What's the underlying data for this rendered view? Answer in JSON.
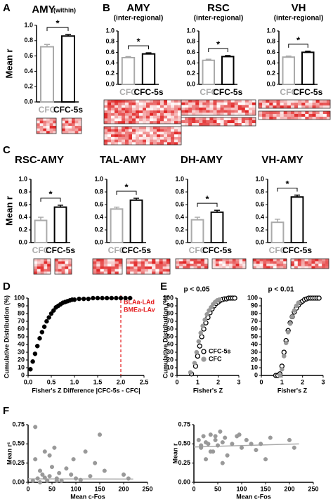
{
  "chart_data": [
    {
      "type": "bar",
      "panel": "A",
      "title": "AMY",
      "subtitle": "(within)",
      "ylabel": "Mean r",
      "categories": [
        "CFC",
        "CFC-5s"
      ],
      "values": [
        0.72,
        0.86
      ],
      "errors": [
        0.03,
        0.02
      ],
      "colors": [
        "#aaaaaa",
        "#000000"
      ],
      "ylim": [
        0,
        1
      ],
      "yticks": [
        {
          "value": 0,
          "label": "0.0"
        },
        0.2,
        0.4,
        0.6,
        0.8,
        {
          "value": 1,
          "label": "1.0"
        }
      ],
      "annotation": "*"
    },
    {
      "type": "bar",
      "panel": "B",
      "title": "AMY",
      "subtitle": "(inter-regional)",
      "categories": [
        "CFC",
        "CFC-5s"
      ],
      "values": [
        0.5,
        0.57
      ],
      "errors": [
        0.02,
        0.02
      ],
      "colors": [
        "#aaaaaa",
        "#000000"
      ],
      "ylim": [
        0,
        1
      ],
      "yticks": [
        {
          "value": 0,
          "label": "0.0"
        },
        0.2,
        0.4,
        0.6,
        0.8,
        {
          "value": 1,
          "label": "1.0"
        }
      ],
      "annotation": "*"
    },
    {
      "type": "bar",
      "title": "RSC",
      "subtitle": "(inter-regional)",
      "categories": [
        "CFC",
        "CFC-5s"
      ],
      "values": [
        0.45,
        0.52
      ],
      "errors": [
        0.02,
        0.02
      ],
      "colors": [
        "#aaaaaa",
        "#000000"
      ],
      "ylim": [
        0,
        1
      ],
      "yticks": [
        {
          "value": 0,
          "label": "0.0"
        },
        0.2,
        0.4,
        0.6,
        0.8,
        {
          "value": 1,
          "label": "1.0"
        }
      ],
      "annotation": "*"
    },
    {
      "type": "bar",
      "title": "VH",
      "subtitle": "(inter-regional)",
      "categories": [
        "CFC",
        "CFC-5s"
      ],
      "values": [
        0.51,
        0.6
      ],
      "errors": [
        0.02,
        0.02
      ],
      "colors": [
        "#aaaaaa",
        "#000000"
      ],
      "ylim": [
        0,
        1
      ],
      "yticks": [
        {
          "value": 0,
          "label": "0.0"
        },
        0.2,
        0.4,
        0.6,
        0.8,
        {
          "value": 1,
          "label": "1.0"
        }
      ],
      "annotation": "*"
    },
    {
      "type": "bar",
      "panel": "C",
      "title": "RSC-AMY",
      "ylabel": "Mean r",
      "categories": [
        "CFC",
        "CFC-5s"
      ],
      "values": [
        0.35,
        0.56
      ],
      "errors": [
        0.05,
        0.03
      ],
      "colors": [
        "#aaaaaa",
        "#000000"
      ],
      "ylim": [
        0,
        1
      ],
      "yticks": [
        {
          "value": 0,
          "label": "0.0"
        },
        0.2,
        0.4,
        0.6,
        0.8,
        {
          "value": 1,
          "label": "1.0"
        }
      ],
      "annotation": "*"
    },
    {
      "type": "bar",
      "title": "TAL-AMY",
      "categories": [
        "CFC",
        "CFC-5s"
      ],
      "values": [
        0.53,
        0.67
      ],
      "errors": [
        0.03,
        0.03
      ],
      "colors": [
        "#aaaaaa",
        "#000000"
      ],
      "ylim": [
        0,
        1
      ],
      "yticks": [
        {
          "value": 0,
          "label": "0.0"
        },
        0.2,
        0.4,
        0.6,
        0.8,
        {
          "value": 1,
          "label": "1.0"
        }
      ],
      "annotation": "*"
    },
    {
      "type": "bar",
      "title": "DH-AMY",
      "categories": [
        "CFC",
        "CFC-5s"
      ],
      "values": [
        0.36,
        0.48
      ],
      "errors": [
        0.04,
        0.03
      ],
      "colors": [
        "#aaaaaa",
        "#000000"
      ],
      "ylim": [
        0,
        1
      ],
      "yticks": [
        {
          "value": 0,
          "label": "0.0"
        },
        0.2,
        0.4,
        0.6,
        0.8,
        {
          "value": 1,
          "label": "1.0"
        }
      ],
      "annotation": "*"
    },
    {
      "type": "bar",
      "title": "VH-AMY",
      "categories": [
        "CFC",
        "CFC-5s"
      ],
      "values": [
        0.32,
        0.72
      ],
      "errors": [
        0.05,
        0.03
      ],
      "colors": [
        "#aaaaaa",
        "#000000"
      ],
      "ylim": [
        0,
        1
      ],
      "yticks": [
        {
          "value": 0,
          "label": "0.0"
        },
        0.2,
        0.4,
        0.6,
        0.8,
        {
          "value": 1,
          "label": "1.0"
        }
      ],
      "annotation": "*"
    },
    {
      "type": "scatter",
      "panel": "D",
      "xlabel": "Fisher's Z Difference |CFC-5s - CFC|",
      "ylabel": "Cumulative Distribution (%)",
      "series": [
        {
          "color": "#000000",
          "marker": "filled",
          "x": [
            0.05,
            0.1,
            0.15,
            0.2,
            0.25,
            0.3,
            0.35,
            0.4,
            0.45,
            0.5,
            0.55,
            0.6,
            0.65,
            0.7,
            0.75,
            0.8,
            0.85,
            0.9,
            0.95,
            1.0,
            1.1,
            1.2,
            1.3,
            1.4,
            1.5,
            1.6,
            1.7,
            1.8,
            1.9,
            2.0,
            2.1,
            2.2
          ],
          "values": [
            8,
            18,
            28,
            38,
            48,
            56,
            63,
            70,
            75,
            80,
            84,
            88,
            90,
            92,
            94,
            95,
            96,
            97,
            98,
            98,
            99,
            99,
            99,
            100,
            100,
            100,
            100,
            100,
            100,
            100,
            100,
            100
          ]
        }
      ],
      "threshold": 2,
      "threshold_color": "#e41a1c",
      "annotations": [
        "BLAa-LAd",
        "BMEa-LAv"
      ],
      "xlim": [
        0,
        2.5
      ],
      "xticks": [
        {
          "value": 0,
          "label": "0.0"
        },
        0.5,
        {
          "value": 1,
          "label": "1.0"
        },
        1.5,
        {
          "value": 2,
          "label": "2.0"
        },
        2.5
      ],
      "ylim": [
        0,
        100
      ],
      "yticks": [
        0,
        10,
        20,
        30,
        40,
        50,
        60,
        70,
        80,
        90,
        100
      ]
    },
    {
      "type": "scatter",
      "panel": "E",
      "title": "p < 0.05",
      "xlabel": "Fisher's Z",
      "ylabel": "Cumulative Distribution (%)",
      "legend": "lower-right",
      "series": [
        {
          "name": "CFC-5s",
          "color": "#000000",
          "marker": "open",
          "x": [
            0.7,
            0.9,
            1.0,
            1.1,
            1.2,
            1.3,
            1.4,
            1.5,
            1.6,
            1.7,
            1.8,
            1.9,
            2.0,
            2.1,
            2.2,
            2.3,
            2.4,
            2.5,
            2.6,
            2.7,
            2.8
          ],
          "values": [
            2,
            12,
            25,
            38,
            50,
            60,
            68,
            75,
            81,
            86,
            90,
            93,
            95,
            97,
            98,
            99,
            99,
            100,
            100,
            100,
            100
          ]
        },
        {
          "name": "CFC",
          "color": "#999999",
          "marker": "filled",
          "x": [
            0.65,
            0.85,
            0.95,
            1.05,
            1.15,
            1.25,
            1.35,
            1.45,
            1.55,
            1.65,
            1.75,
            1.85,
            1.95,
            2.05
          ],
          "values": [
            4,
            16,
            30,
            44,
            55,
            64,
            72,
            79,
            84,
            88,
            92,
            95,
            97,
            98
          ]
        }
      ],
      "xlim": [
        0,
        3
      ],
      "xticks": [
        0,
        1,
        2,
        3
      ],
      "ylim": [
        0,
        100
      ],
      "yticks": [
        0,
        10,
        20,
        30,
        40,
        50,
        60,
        70,
        80,
        90,
        100
      ]
    },
    {
      "type": "scatter",
      "title": "p < 0.01",
      "xlabel": "Fisher's Z",
      "series": [
        {
          "color": "#000000",
          "marker": "open",
          "x": [
            0.7,
            0.8,
            0.9,
            1.0,
            1.1,
            1.2,
            1.3,
            1.4,
            1.5,
            1.6,
            1.7,
            1.8,
            1.9,
            2.0,
            2.1,
            2.2,
            2.3,
            2.4,
            2.5,
            2.6,
            2.7,
            2.8
          ],
          "values": [
            0,
            0,
            2,
            12,
            30,
            45,
            58,
            68,
            76,
            82,
            87,
            91,
            94,
            96,
            98,
            99,
            100,
            100,
            100,
            100,
            100,
            100
          ]
        },
        {
          "color": "#999999",
          "marker": "filled",
          "x": [
            0.9,
            1.0,
            1.1,
            1.2,
            1.3,
            1.4,
            1.5,
            1.6,
            1.7,
            1.8
          ],
          "values": [
            0,
            8,
            25,
            42,
            56,
            67,
            76,
            84,
            90,
            94
          ]
        }
      ],
      "xlim": [
        0,
        3
      ],
      "xticks": [
        0,
        1,
        2,
        3
      ],
      "ylim": [
        0,
        100
      ],
      "yticks": [
        0,
        10,
        20,
        30,
        40,
        50,
        60,
        70,
        80,
        90,
        100
      ]
    },
    {
      "type": "scatter",
      "panel": "F",
      "xlabel": "Mean c-Fos",
      "ylabel": "Mean r²",
      "series": [
        {
          "color": "#999999",
          "marker": "filled",
          "x": [
            10,
            15,
            20,
            25,
            30,
            35,
            40,
            45,
            50,
            55,
            60,
            65,
            70,
            80,
            90,
            100,
            110,
            120,
            130,
            150,
            160,
            200,
            210,
            25,
            45,
            60,
            95,
            140,
            15,
            35
          ],
          "values": [
            0.02,
            0.3,
            0.05,
            0.15,
            0.1,
            0.4,
            0.02,
            0.08,
            0.2,
            0.45,
            0.05,
            0.12,
            0.02,
            0.18,
            0.1,
            0.05,
            0.03,
            0.4,
            0.08,
            0.62,
            0.15,
            0.1,
            0.05,
            0.0,
            0.35,
            0.02,
            0.3,
            0.25,
            0.72,
            0.06
          ]
        }
      ],
      "fit": {
        "x": [
          0,
          220
        ],
        "y": [
          0.045,
          0.042
        ]
      },
      "fit_color": "#aaaaaa",
      "xlim": [
        0,
        250
      ],
      "xticks": [
        0,
        50,
        100,
        150,
        200,
        250
      ],
      "ylim": [
        0,
        0.75
      ],
      "yticks": [
        {
          "value": 0,
          "label": "0.00"
        },
        0.25,
        {
          "value": 0.5,
          "label": "0.50"
        },
        0.75
      ]
    },
    {
      "type": "scatter",
      "xlabel": "Mean c-Fos",
      "ylabel": "Mean r",
      "series": [
        {
          "color": "#999999",
          "marker": "filled",
          "x": [
            10,
            15,
            20,
            25,
            30,
            35,
            40,
            45,
            50,
            55,
            60,
            65,
            70,
            80,
            90,
            100,
            110,
            120,
            130,
            150,
            160,
            200,
            210,
            25,
            45,
            60,
            95,
            140,
            15,
            35
          ],
          "values": [
            0.55,
            0.45,
            0.6,
            0.3,
            0.5,
            0.62,
            0.4,
            0.55,
            0.48,
            0.66,
            0.52,
            0.58,
            0.35,
            0.5,
            0.6,
            0.45,
            0.55,
            0.5,
            0.42,
            0.3,
            0.58,
            0.55,
            0.45,
            0.52,
            0.6,
            0.25,
            0.62,
            0.5,
            0.48,
            0.4
          ]
        }
      ],
      "fit": {
        "x": [
          0,
          220
        ],
        "y": [
          0.46,
          0.5
        ]
      },
      "fit_color": "#aaaaaa",
      "xlim": [
        0,
        250
      ],
      "xticks": [
        0,
        50,
        100,
        150,
        200,
        250
      ],
      "ylim": [
        0,
        0.75
      ],
      "yticks": [
        {
          "value": 0,
          "label": "0.00"
        },
        0.25,
        {
          "value": 0.5,
          "label": "0.50"
        },
        0.75
      ]
    }
  ]
}
